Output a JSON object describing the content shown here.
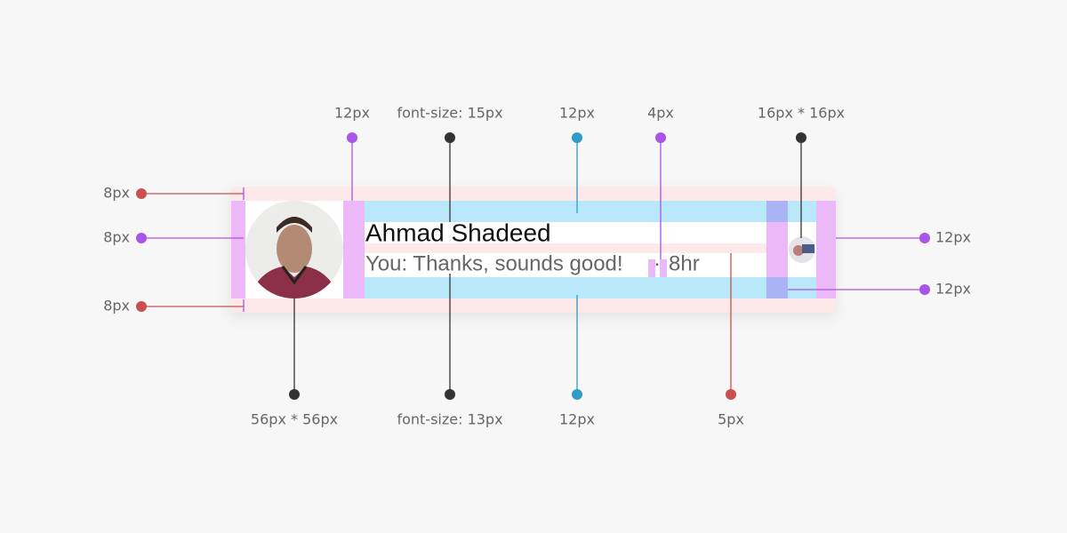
{
  "card": {
    "name": "Ahmad Shadeed",
    "message": "You: Thanks, sounds good!",
    "separator": "·",
    "time": "8hr"
  },
  "annotations": {
    "top": [
      "12px",
      "font-size: 15px",
      "12px",
      "4px",
      "16px * 16px"
    ],
    "bottom": [
      "56px * 56px",
      "font-size: 13px",
      "12px",
      "5px"
    ],
    "left": [
      "8px",
      "8px",
      "8px"
    ],
    "right": [
      "12px",
      "12px"
    ]
  }
}
